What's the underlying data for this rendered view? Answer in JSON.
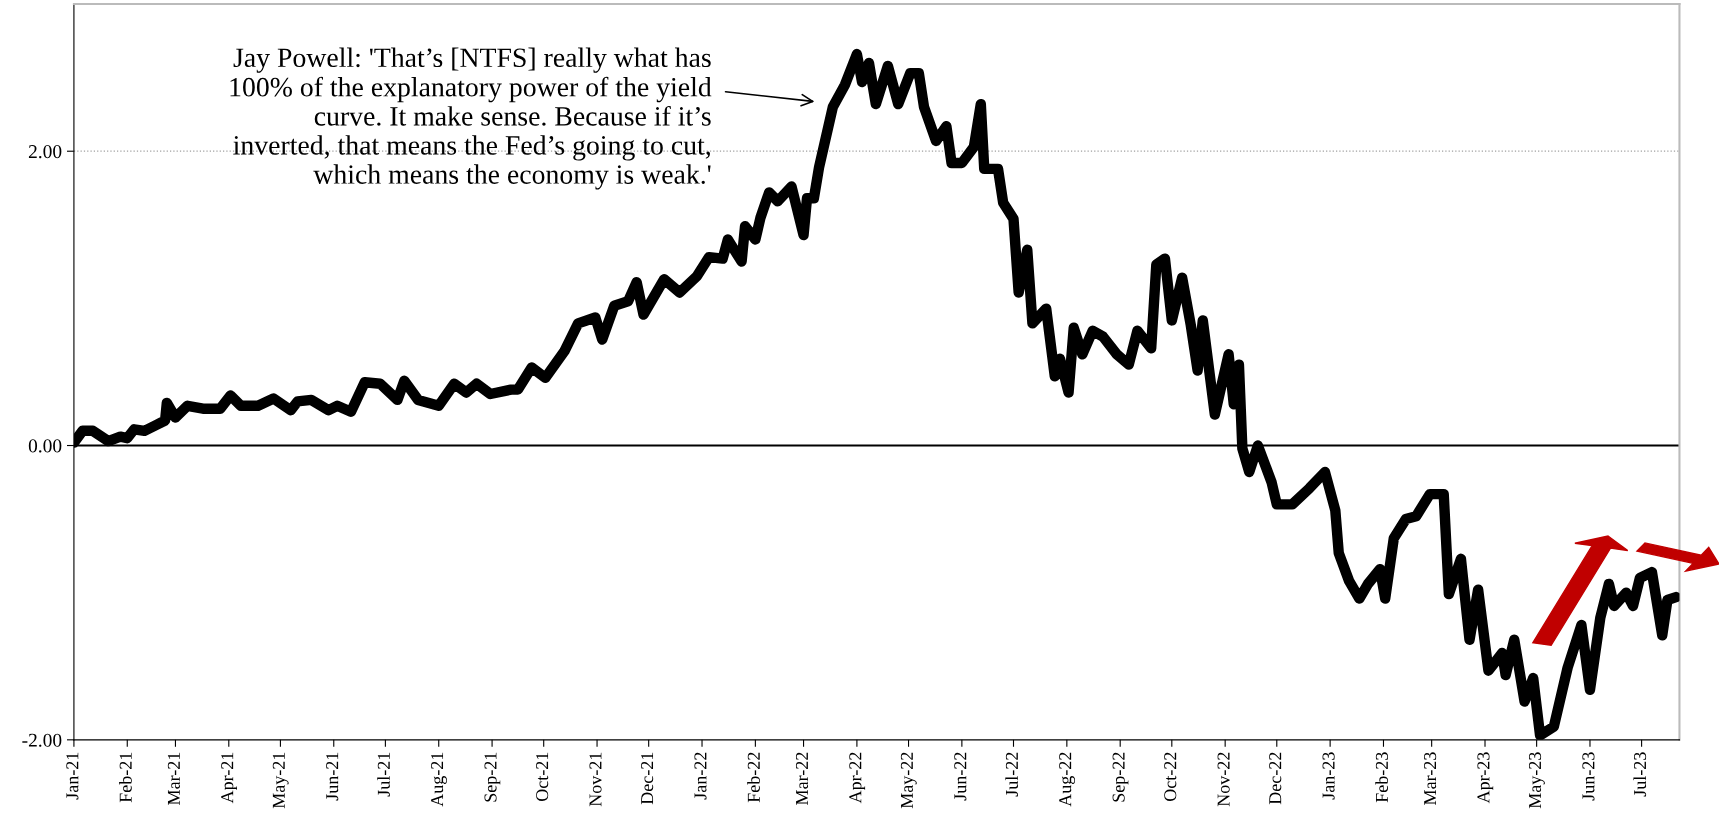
{
  "chart_data": {
    "type": "line",
    "x": [
      "2021-01-01",
      "2021-01-06",
      "2021-01-12",
      "2021-01-21",
      "2021-01-28",
      "2021-02-01",
      "2021-02-05",
      "2021-02-11",
      "2021-02-18",
      "2021-02-23",
      "2021-02-24",
      "2021-03-01",
      "2021-03-08",
      "2021-03-17",
      "2021-03-27",
      "2021-04-02",
      "2021-04-08",
      "2021-04-18",
      "2021-04-27",
      "2021-05-07",
      "2021-05-11",
      "2021-05-19",
      "2021-05-29",
      "2021-06-03",
      "2021-06-11",
      "2021-06-19",
      "2021-06-28",
      "2021-07-08",
      "2021-07-12",
      "2021-07-20",
      "2021-08-01",
      "2021-08-10",
      "2021-08-17",
      "2021-08-23",
      "2021-08-31",
      "2021-09-12",
      "2021-09-16",
      "2021-09-24",
      "2021-10-02",
      "2021-10-13",
      "2021-10-21",
      "2021-10-31",
      "2021-11-04",
      "2021-11-11",
      "2021-11-19",
      "2021-11-24",
      "2021-11-28",
      "2021-12-10",
      "2021-12-19",
      "2021-12-29",
      "2022-01-05",
      "2022-01-13",
      "2022-01-16",
      "2022-01-24",
      "2022-01-26",
      "2022-02-01",
      "2022-02-04",
      "2022-02-09",
      "2022-02-14",
      "2022-02-22",
      "2022-03-01",
      "2022-03-03",
      "2022-03-07",
      "2022-03-10",
      "2022-03-18",
      "2022-03-25",
      "2022-04-01",
      "2022-04-04",
      "2022-04-08",
      "2022-04-12",
      "2022-04-19",
      "2022-04-25",
      "2022-05-02",
      "2022-05-07",
      "2022-05-10",
      "2022-05-17",
      "2022-05-23",
      "2022-05-26",
      "2022-06-01",
      "2022-06-08",
      "2022-06-12",
      "2022-06-14",
      "2022-06-22",
      "2022-06-25",
      "2022-07-01",
      "2022-07-04",
      "2022-07-09",
      "2022-07-12",
      "2022-07-20",
      "2022-07-25",
      "2022-07-28",
      "2022-08-02",
      "2022-08-05",
      "2022-08-10",
      "2022-08-16",
      "2022-08-22",
      "2022-08-30",
      "2022-09-06",
      "2022-09-11",
      "2022-09-19",
      "2022-09-22",
      "2022-09-27",
      "2022-10-01",
      "2022-10-07",
      "2022-10-12",
      "2022-10-16",
      "2022-10-19",
      "2022-10-26",
      "2022-11-03",
      "2022-11-06",
      "2022-11-09",
      "2022-11-11",
      "2022-11-15",
      "2022-11-20",
      "2022-11-28",
      "2022-12-01",
      "2022-12-10",
      "2022-12-20",
      "2022-12-29",
      "2023-01-04",
      "2023-01-06",
      "2023-01-12",
      "2023-01-18",
      "2023-01-23",
      "2023-01-30",
      "2023-02-02",
      "2023-02-07",
      "2023-02-14",
      "2023-02-20",
      "2023-02-28",
      "2023-03-08",
      "2023-03-11",
      "2023-03-18",
      "2023-03-23",
      "2023-03-28",
      "2023-04-03",
      "2023-04-11",
      "2023-04-13",
      "2023-04-18",
      "2023-04-24",
      "2023-04-29",
      "2023-05-03",
      "2023-05-11",
      "2023-05-19",
      "2023-05-27",
      "2023-06-01",
      "2023-06-07",
      "2023-06-12",
      "2023-06-15",
      "2023-06-22",
      "2023-06-26",
      "2023-06-30",
      "2023-07-07",
      "2023-07-13",
      "2023-07-16",
      "2023-07-21"
    ],
    "series": [
      {
        "color": "#000000",
        "values": [
          0.02,
          0.1,
          0.1,
          0.03,
          0.06,
          0.05,
          0.11,
          0.1,
          0.14,
          0.17,
          0.29,
          0.19,
          0.27,
          0.25,
          0.25,
          0.34,
          0.27,
          0.27,
          0.32,
          0.24,
          0.3,
          0.31,
          0.24,
          0.27,
          0.23,
          0.43,
          0.42,
          0.31,
          0.44,
          0.31,
          0.27,
          0.42,
          0.36,
          0.42,
          0.35,
          0.38,
          0.38,
          0.53,
          0.46,
          0.64,
          0.83,
          0.87,
          0.72,
          0.95,
          0.98,
          1.11,
          0.89,
          1.13,
          1.04,
          1.15,
          1.28,
          1.27,
          1.4,
          1.25,
          1.49,
          1.4,
          1.55,
          1.72,
          1.66,
          1.76,
          1.43,
          1.68,
          1.68,
          1.89,
          2.3,
          2.45,
          2.66,
          2.47,
          2.6,
          2.32,
          2.58,
          2.32,
          2.53,
          2.53,
          2.3,
          2.07,
          2.17,
          1.92,
          1.92,
          2.03,
          2.32,
          1.88,
          1.88,
          1.65,
          1.54,
          1.04,
          1.33,
          0.83,
          0.93,
          0.47,
          0.59,
          0.36,
          0.8,
          0.62,
          0.78,
          0.74,
          0.62,
          0.55,
          0.78,
          0.66,
          1.23,
          1.27,
          0.85,
          1.14,
          0.82,
          0.51,
          0.85,
          0.21,
          0.62,
          0.28,
          0.55,
          -0.02,
          -0.18,
          0.0,
          -0.25,
          -0.4,
          -0.4,
          -0.29,
          -0.18,
          -0.44,
          -0.73,
          -0.92,
          -1.04,
          -0.94,
          -0.84,
          -1.04,
          -0.63,
          -0.5,
          -0.48,
          -0.33,
          -0.33,
          -1.01,
          -0.77,
          -1.32,
          -0.98,
          -1.53,
          -1.41,
          -1.56,
          -1.32,
          -1.74,
          -1.58,
          -1.97,
          -1.91,
          -1.51,
          -1.22,
          -1.66,
          -1.17,
          -0.94,
          -1.09,
          -1.0,
          -1.09,
          -0.9,
          -0.86,
          -1.29,
          -1.05,
          -1.03
        ]
      }
    ],
    "xlim": [
      "2021-01-01",
      "2023-07-23"
    ],
    "xticks": [
      {
        "value": "2021-01-01",
        "label": "Jan-21"
      },
      {
        "value": "2021-02-01",
        "label": "Feb-21"
      },
      {
        "value": "2021-03-01",
        "label": "Mar-21"
      },
      {
        "value": "2021-04-01",
        "label": "Apr-21"
      },
      {
        "value": "2021-05-01",
        "label": "May-21"
      },
      {
        "value": "2021-06-01",
        "label": "Jun-21"
      },
      {
        "value": "2021-07-01",
        "label": "Jul-21"
      },
      {
        "value": "2021-08-01",
        "label": "Aug-21"
      },
      {
        "value": "2021-09-01",
        "label": "Sep-21"
      },
      {
        "value": "2021-10-01",
        "label": "Oct-21"
      },
      {
        "value": "2021-11-01",
        "label": "Nov-21"
      },
      {
        "value": "2021-12-01",
        "label": "Dec-21"
      },
      {
        "value": "2022-01-01",
        "label": "Jan-22"
      },
      {
        "value": "2022-02-01",
        "label": "Feb-22"
      },
      {
        "value": "2022-03-01",
        "label": "Mar-22"
      },
      {
        "value": "2022-04-01",
        "label": "Apr-22"
      },
      {
        "value": "2022-05-01",
        "label": "May-22"
      },
      {
        "value": "2022-06-01",
        "label": "Jun-22"
      },
      {
        "value": "2022-07-01",
        "label": "Jul-22"
      },
      {
        "value": "2022-08-01",
        "label": "Aug-22"
      },
      {
        "value": "2022-09-01",
        "label": "Sep-22"
      },
      {
        "value": "2022-10-01",
        "label": "Oct-22"
      },
      {
        "value": "2022-11-01",
        "label": "Nov-22"
      },
      {
        "value": "2022-12-01",
        "label": "Dec-22"
      },
      {
        "value": "2023-01-01",
        "label": "Jan-23"
      },
      {
        "value": "2023-02-01",
        "label": "Feb-23"
      },
      {
        "value": "2023-03-01",
        "label": "Mar-23"
      },
      {
        "value": "2023-04-01",
        "label": "Apr-23"
      },
      {
        "value": "2023-05-01",
        "label": "May-23"
      },
      {
        "value": "2023-06-01",
        "label": "Jun-23"
      },
      {
        "value": "2023-07-01",
        "label": "Jul-23"
      }
    ],
    "ylim": [
      -2,
      3
    ],
    "yticks": [
      {
        "value": -2,
        "label": "-2.00"
      },
      {
        "value": 0,
        "label": "0.00"
      },
      {
        "value": 2,
        "label": "2.00"
      }
    ],
    "ref_lines": [
      {
        "axis": "y",
        "value": 0,
        "color": "#000000"
      },
      {
        "axis": "y",
        "value": 2,
        "color": "#a0a0a0",
        "line_style": "dotted"
      }
    ],
    "annotations": [
      "Jay Powell: 'That’s [NTFS] really what has\n100% of the explanatory power of the yield\ncurve. It make sense. Because if it’s\ninverted, that means the Fed’s going to cut,\nwhich means the economy is weak.'"
    ]
  }
}
